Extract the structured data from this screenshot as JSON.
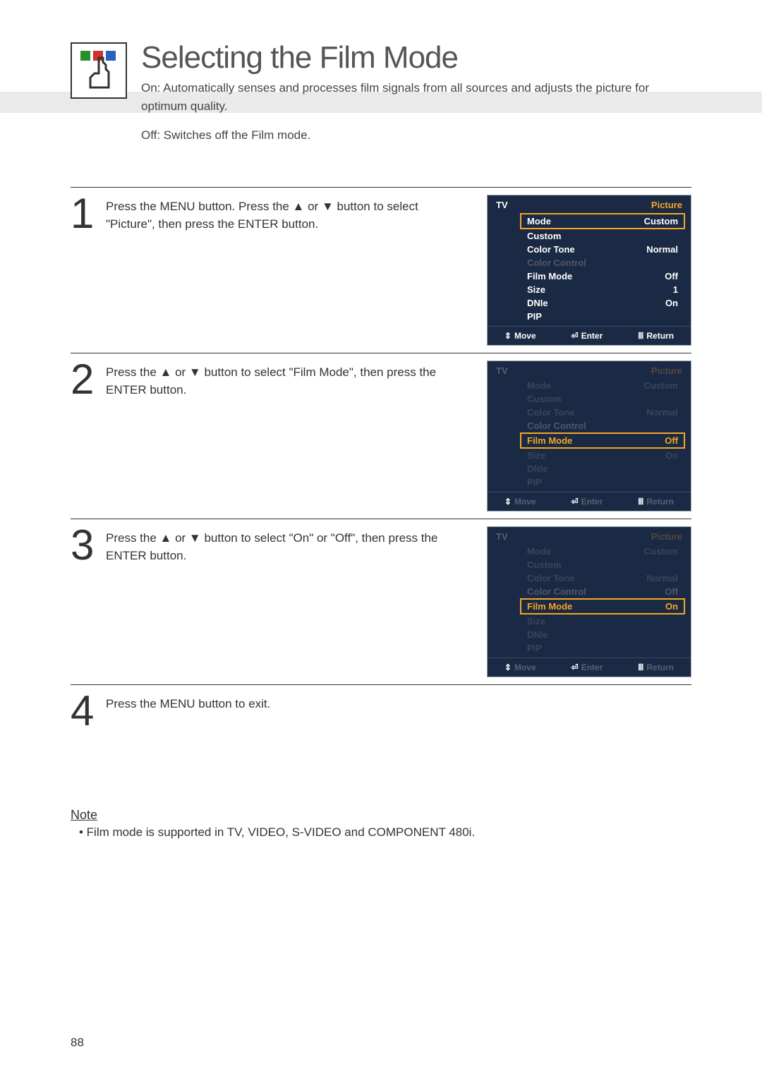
{
  "header": {
    "title": "Selecting the Film Mode",
    "description_on": "On: Automatically senses and processes film signals from all sources and adjusts the picture for optimum quality.",
    "description_off": "Off: Switches off the Film mode.",
    "icon_colors": {
      "sq1": "#2a8f2a",
      "sq2": "#d03030",
      "sq3": "#2a60c0"
    }
  },
  "steps": [
    {
      "num": "1",
      "text": "Press the MENU button. Press the ▲ or ▼ button to select \"Picture\", then press the ENTER button."
    },
    {
      "num": "2",
      "text": "Press the ▲ or ▼ button to select \"Film Mode\", then press the ENTER button."
    },
    {
      "num": "3",
      "text": "Press the ▲ or ▼ button to select \"On\" or \"Off\", then press the ENTER button."
    },
    {
      "num": "4",
      "text": "Press the MENU button to exit."
    }
  ],
  "osd1": {
    "tv": "TV",
    "category": "Picture",
    "rows": [
      {
        "label": "Mode",
        "value": "Custom",
        "selected": true
      },
      {
        "label": "Custom",
        "value": ""
      },
      {
        "label": "Color Tone",
        "value": "Normal"
      },
      {
        "label": "Color Control",
        "value": "",
        "dim_label": true
      },
      {
        "label": "Film Mode",
        "value": "Off"
      },
      {
        "label": "Size",
        "value": "1"
      },
      {
        "label": "DNIe",
        "value": "On"
      },
      {
        "label": "PIP",
        "value": ""
      }
    ],
    "footer": {
      "move": "Move",
      "enter": "Enter",
      "return": "Return"
    }
  },
  "osd2": {
    "tv": "TV",
    "category": "Picture",
    "rows": [
      {
        "label": "Mode",
        "value": "Custom",
        "fade": true
      },
      {
        "label": "Custom",
        "value": "",
        "fade": true
      },
      {
        "label": "Color Tone",
        "value": "Normal",
        "fade": true
      },
      {
        "label": "Color Control",
        "value": "",
        "dim_label": true
      },
      {
        "label": "Film Mode",
        "value": "Off",
        "hl_label": true,
        "val_orange": true,
        "selected": true
      },
      {
        "label": "Size",
        "value": "On",
        "fade": true,
        "val_dim": true
      },
      {
        "label": "DNIe",
        "value": "",
        "fade": true
      },
      {
        "label": "PIP",
        "value": "",
        "fade": true
      }
    ],
    "footer": {
      "move": "Move",
      "enter": "Enter",
      "return": "Return"
    }
  },
  "osd3": {
    "tv": "TV",
    "category": "Picture",
    "rows": [
      {
        "label": "Mode",
        "value": "Custom",
        "fade": true
      },
      {
        "label": "Custom",
        "value": "",
        "fade": true
      },
      {
        "label": "Color Tone",
        "value": "Normal",
        "fade": true
      },
      {
        "label": "Color Control",
        "value": "Off",
        "dim_label": true,
        "val_dim": true
      },
      {
        "label": "Film Mode",
        "value": "On",
        "hl_label": true,
        "val_orange": true,
        "selected": true
      },
      {
        "label": "Size",
        "value": "",
        "fade": true
      },
      {
        "label": "DNIe",
        "value": "",
        "fade": true
      },
      {
        "label": "PIP",
        "value": "",
        "fade": true
      }
    ],
    "footer": {
      "move": "Move",
      "enter": "Enter",
      "return": "Return"
    }
  },
  "note": {
    "title": "Note",
    "bullet": "• Film mode is supported in TV, VIDEO, S-VIDEO and COMPONENT 480i."
  },
  "page_number": "88",
  "colors": {
    "osd_bg": "#1b2a44",
    "orange": "#f5a623",
    "gray_band": "#eaeaea"
  },
  "footer_icons": {
    "move": "⇕",
    "enter": "⏎",
    "return": "Ⅲ"
  }
}
